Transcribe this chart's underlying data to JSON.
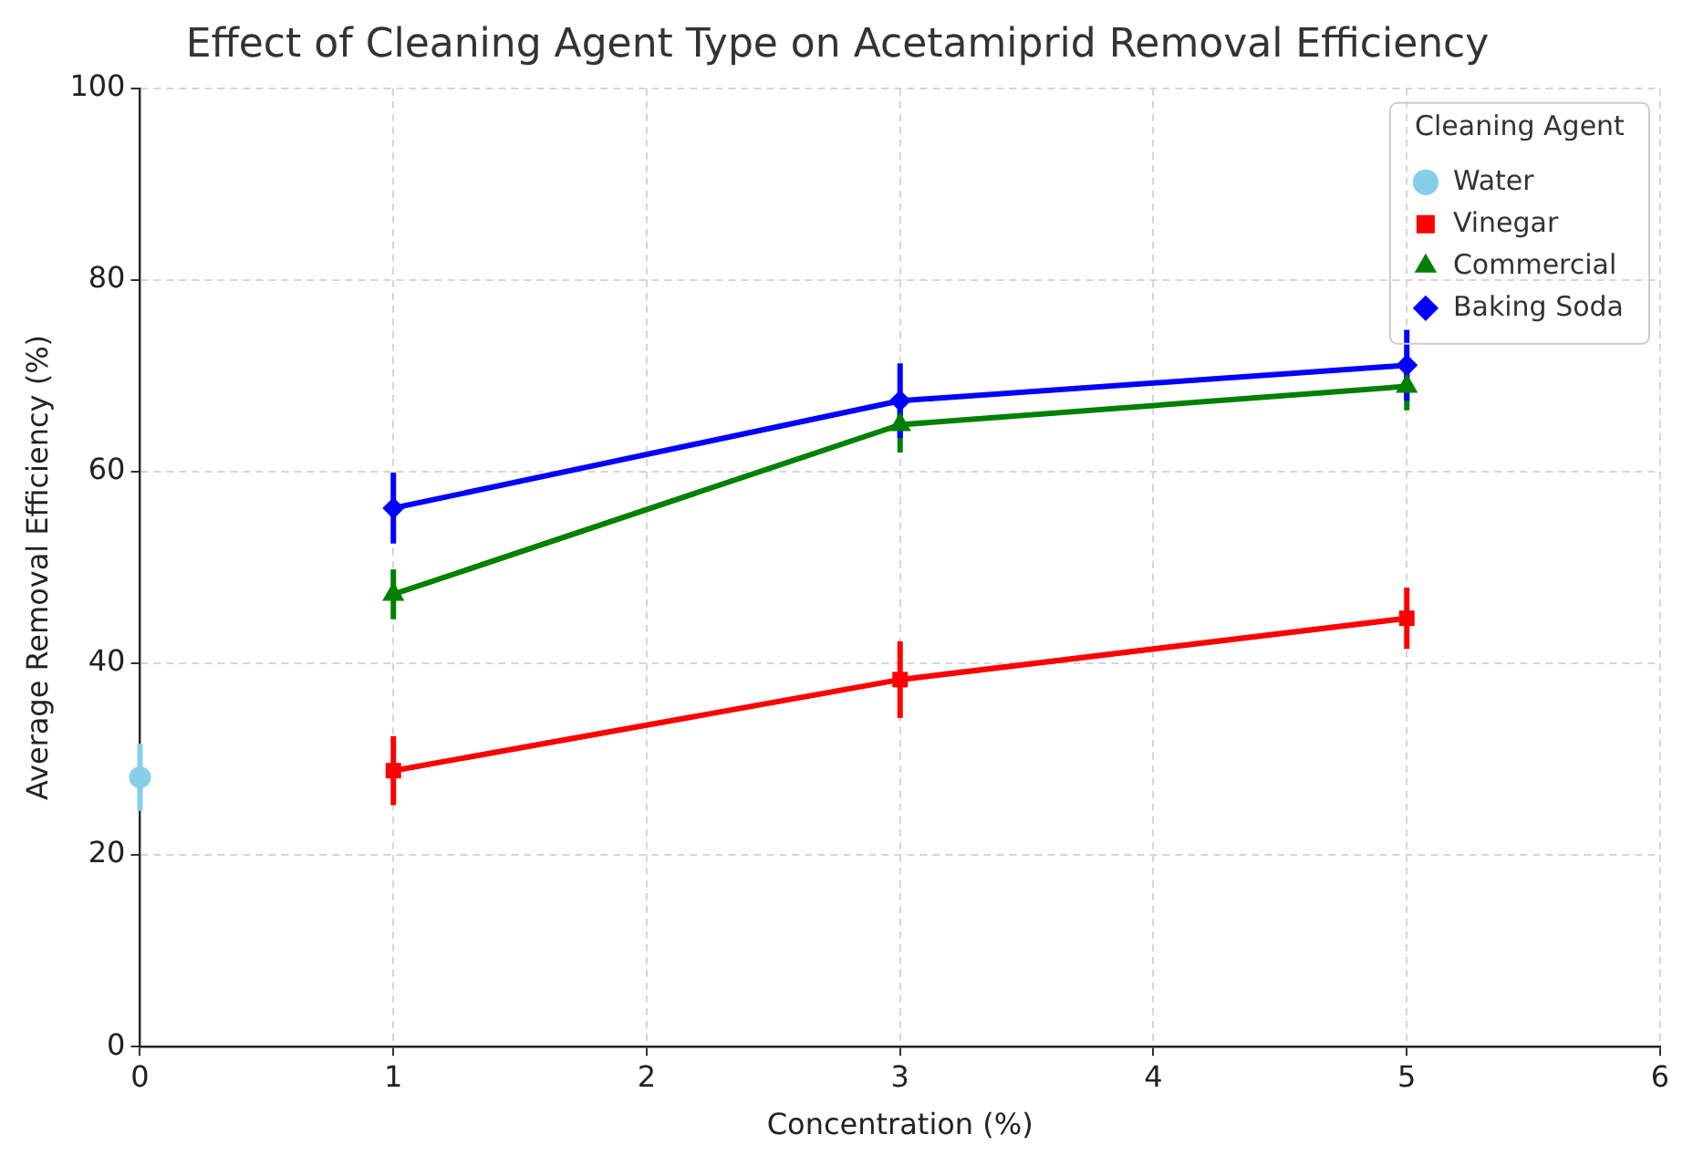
{
  "chart_data": {
    "type": "line",
    "title": "Effect of Cleaning Agent Type on Acetamiprid Removal Efficiency",
    "xlabel": "Concentration (%)",
    "ylabel": "Average Removal Efficiency (%)",
    "legend_title": "Cleaning Agent",
    "xlim": [
      0,
      6
    ],
    "xticks": [
      0,
      1,
      2,
      3,
      4,
      5,
      6
    ],
    "ylim": [
      0,
      100
    ],
    "yticks": [
      0,
      20,
      40,
      60,
      80,
      100
    ],
    "grid": true,
    "legend": "top right",
    "line_style": "solid",
    "series": [
      {
        "name": "Water",
        "color": "#87ceeb",
        "marker": "circle",
        "x": [
          0
        ],
        "values": [
          28.1
        ],
        "errors": [
          3.5
        ]
      },
      {
        "name": "Vinegar",
        "color": "#ff0000",
        "marker": "square",
        "x": [
          1,
          3,
          5
        ],
        "values": [
          28.8,
          38.3,
          44.7
        ],
        "errors": [
          3.6,
          4.0,
          3.2
        ]
      },
      {
        "name": "Commercial",
        "color": "#008000",
        "marker": "triangle",
        "x": [
          1,
          3,
          5
        ],
        "values": [
          47.2,
          64.9,
          68.9
        ],
        "errors": [
          2.6,
          2.9,
          2.5
        ]
      },
      {
        "name": "Baking Soda",
        "color": "#0000ff",
        "marker": "diamond",
        "x": [
          1,
          3,
          5
        ],
        "values": [
          56.2,
          67.4,
          71.1
        ],
        "errors": [
          3.7,
          3.9,
          3.7
        ]
      }
    ]
  }
}
